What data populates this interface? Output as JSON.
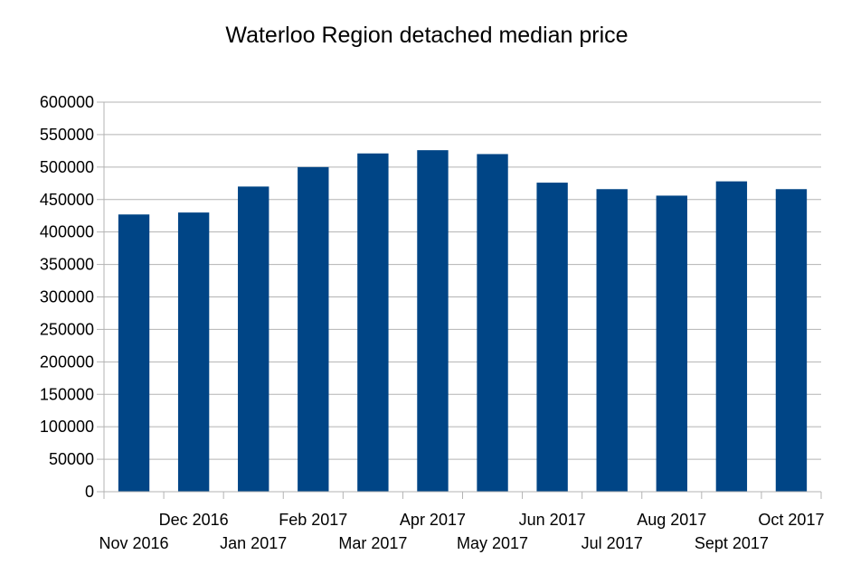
{
  "chart_data": {
    "type": "bar",
    "title": "Waterloo Region detached median price",
    "xlabel": "",
    "ylabel": "",
    "categories": [
      "Nov 2016",
      "Dec 2016",
      "Jan 2017",
      "Feb 2017",
      "Mar 2017",
      "Apr 2017",
      "May 2017",
      "Jun 2017",
      "Jul 2017",
      "Aug 2017",
      "Sept 2017",
      "Oct 2017"
    ],
    "values": [
      427000,
      430000,
      470000,
      500000,
      521000,
      526000,
      520000,
      476000,
      466000,
      456000,
      478000,
      466000
    ],
    "ylim": [
      0,
      600000
    ],
    "yticks": [
      "0",
      "50000",
      "100000",
      "150000",
      "200000",
      "250000",
      "300000",
      "350000",
      "400000",
      "450000",
      "500000",
      "550000",
      "600000"
    ],
    "grid": true,
    "legend": "none",
    "bar_color": "#004586"
  }
}
